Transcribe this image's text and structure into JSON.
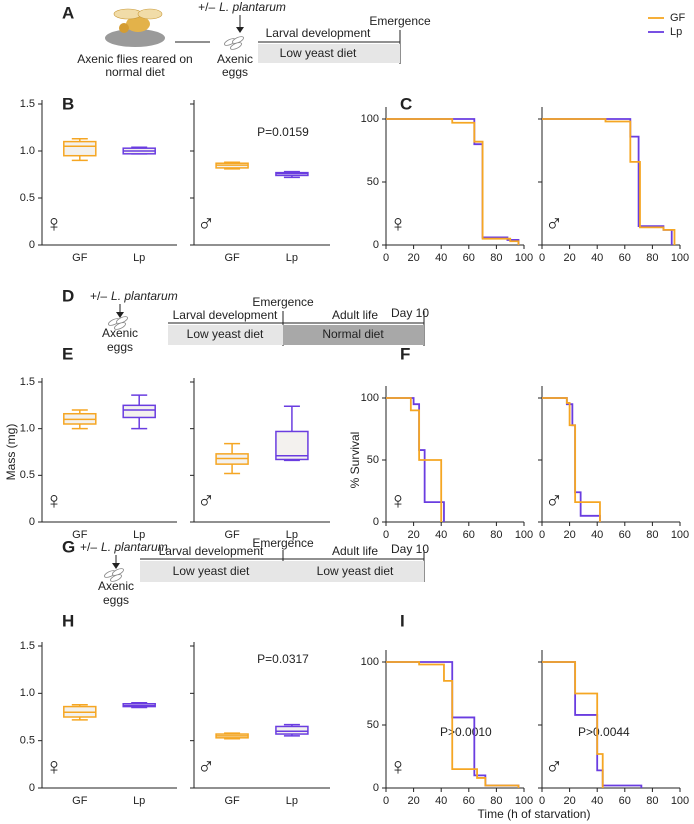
{
  "diagrams": {
    "A": {
      "label": "A",
      "source": [
        "Axenic flies reared on",
        "normal diet"
      ],
      "treatment": [
        "+/–",
        "L. plantarum"
      ],
      "eggs": [
        "Axenic",
        "eggs"
      ],
      "event": "Emergence",
      "stages": [
        "Larval development"
      ],
      "diets": [
        "Low yeast diet"
      ]
    },
    "D": {
      "label": "D",
      "treatment": [
        "+/–",
        "L. plantarum"
      ],
      "eggs": [
        "Axenic",
        "eggs"
      ],
      "event": "Emergence",
      "stages": [
        "Larval development",
        "Adult life"
      ],
      "diets": [
        "Low yeast diet",
        "Normal diet"
      ],
      "end": "Day 10"
    },
    "G": {
      "label": "G",
      "treatment": [
        "+/–",
        "L. plantarum"
      ],
      "eggs": [
        "Axenic",
        "eggs"
      ],
      "event": "Emergence",
      "stages": [
        "Larval development",
        "Adult life"
      ],
      "diets": [
        "Low yeast diet",
        "Low yeast diet"
      ],
      "end": "Day 10"
    }
  },
  "chart_data": [
    {
      "type": "box",
      "label": "B",
      "sex": "♀",
      "categories": [
        "GF",
        "Lp"
      ],
      "colors": [
        "#f5a623",
        "#6a3de0"
      ],
      "boxes": [
        {
          "min": 0.9,
          "q1": 0.95,
          "median": 1.05,
          "q3": 1.1,
          "max": 1.13
        },
        {
          "min": 0.97,
          "q1": 0.97,
          "median": 1.0,
          "q3": 1.03,
          "max": 1.04
        }
      ],
      "ylim": [
        0,
        1.5
      ],
      "yticks": [
        0,
        0.5,
        {
          "value": 1,
          "label": "1.0"
        },
        1.5
      ]
    },
    {
      "type": "box",
      "sex": "♂",
      "annotation": "P=0.0159",
      "categories": [
        "GF",
        "Lp"
      ],
      "colors": [
        "#f5a623",
        "#6a3de0"
      ],
      "boxes": [
        {
          "min": 0.81,
          "q1": 0.82,
          "median": 0.85,
          "q3": 0.87,
          "max": 0.88
        },
        {
          "min": 0.72,
          "q1": 0.74,
          "median": 0.76,
          "q3": 0.77,
          "max": 0.78
        }
      ],
      "ylim": [
        0,
        1.5
      ],
      "yticks": [
        0,
        0.5,
        1,
        1.5
      ],
      "tick_labels": false
    },
    {
      "type": "step",
      "label": "C",
      "sex": "♀",
      "xlim": [
        0,
        100
      ],
      "xticks": [
        0,
        20,
        40,
        60,
        80,
        100
      ],
      "ylim": [
        0,
        100
      ],
      "yticks": [
        0,
        50,
        100
      ],
      "series": [
        {
          "color": "#f5a623",
          "x": [
            0,
            48,
            64,
            70,
            90,
            96
          ],
          "values": [
            100,
            97,
            82,
            5,
            3,
            0
          ]
        },
        {
          "color": "#6a3de0",
          "x": [
            0,
            64,
            70,
            88,
            96
          ],
          "values": [
            100,
            80,
            6,
            4,
            0
          ]
        }
      ]
    },
    {
      "type": "step",
      "sex": "♂",
      "xlim": [
        0,
        100
      ],
      "xticks": [
        0,
        20,
        40,
        60,
        80,
        100
      ],
      "ylim": [
        0,
        100
      ],
      "yticks": [
        0,
        50,
        100
      ],
      "tick_labels": false,
      "legend": "upper right",
      "series": [
        {
          "name": "GF",
          "color": "#f5a623",
          "x": [
            0,
            46,
            64,
            71,
            88,
            96
          ],
          "values": [
            100,
            98,
            66,
            14,
            12,
            0
          ]
        },
        {
          "name": "Lp",
          "color": "#6a3de0",
          "x": [
            0,
            64,
            70,
            88,
            94
          ],
          "values": [
            100,
            86,
            15,
            12,
            0
          ]
        }
      ]
    },
    {
      "type": "box",
      "label": "E",
      "sex": "♀",
      "ylabel": "Mass (mg)",
      "categories": [
        "GF",
        "Lp"
      ],
      "colors": [
        "#f5a623",
        "#6a3de0"
      ],
      "boxes": [
        {
          "min": 1.0,
          "q1": 1.05,
          "median": 1.1,
          "q3": 1.16,
          "max": 1.2
        },
        {
          "min": 1.0,
          "q1": 1.12,
          "median": 1.2,
          "q3": 1.25,
          "max": 1.36
        }
      ],
      "ylim": [
        0,
        1.5
      ],
      "yticks": [
        0,
        0.5,
        {
          "value": 1,
          "label": "1.0"
        },
        1.5
      ]
    },
    {
      "type": "box",
      "sex": "♂",
      "categories": [
        "GF",
        "Lp"
      ],
      "colors": [
        "#f5a623",
        "#6a3de0"
      ],
      "boxes": [
        {
          "min": 0.52,
          "q1": 0.62,
          "median": 0.68,
          "q3": 0.73,
          "max": 0.84
        },
        {
          "min": 0.66,
          "q1": 0.67,
          "median": 0.71,
          "q3": 0.97,
          "max": 1.24
        }
      ],
      "ylim": [
        0,
        1.5
      ],
      "yticks": [
        0,
        0.5,
        1,
        1.5
      ],
      "tick_labels": false
    },
    {
      "type": "step",
      "label": "F",
      "sex": "♀",
      "ylabel": "% Survival",
      "xlim": [
        0,
        100
      ],
      "xticks": [
        0,
        20,
        40,
        60,
        80,
        100
      ],
      "ylim": [
        0,
        100
      ],
      "yticks": [
        0,
        50,
        100
      ],
      "series": [
        {
          "color": "#f5a623",
          "x": [
            0,
            18,
            24,
            40
          ],
          "values": [
            100,
            90,
            50,
            0
          ]
        },
        {
          "color": "#6a3de0",
          "x": [
            0,
            20,
            24,
            28,
            42
          ],
          "values": [
            100,
            95,
            58,
            16,
            0
          ]
        }
      ]
    },
    {
      "type": "step",
      "sex": "♂",
      "xlim": [
        0,
        100
      ],
      "xticks": [
        0,
        20,
        40,
        60,
        80,
        100
      ],
      "ylim": [
        0,
        100
      ],
      "yticks": [
        0,
        50,
        100
      ],
      "tick_labels": false,
      "series": [
        {
          "color": "#f5a623",
          "x": [
            0,
            18,
            20,
            24,
            42
          ],
          "values": [
            100,
            96,
            78,
            16,
            0
          ]
        },
        {
          "color": "#6a3de0",
          "x": [
            0,
            18,
            22,
            24,
            28,
            42
          ],
          "values": [
            100,
            95,
            78,
            24,
            5,
            0
          ]
        }
      ]
    },
    {
      "type": "box",
      "label": "H",
      "sex": "♀",
      "categories": [
        "GF",
        "Lp"
      ],
      "colors": [
        "#f5a623",
        "#6a3de0"
      ],
      "boxes": [
        {
          "min": 0.72,
          "q1": 0.75,
          "median": 0.8,
          "q3": 0.86,
          "max": 0.88
        },
        {
          "min": 0.85,
          "q1": 0.86,
          "median": 0.87,
          "q3": 0.89,
          "max": 0.9
        }
      ],
      "ylim": [
        0,
        1.5
      ],
      "yticks": [
        0,
        0.5,
        {
          "value": 1,
          "label": "1.0"
        },
        1.5
      ]
    },
    {
      "type": "box",
      "sex": "♂",
      "annotation": "P=0.0317",
      "categories": [
        "GF",
        "Lp"
      ],
      "colors": [
        "#f5a623",
        "#6a3de0"
      ],
      "boxes": [
        {
          "min": 0.52,
          "q1": 0.53,
          "median": 0.55,
          "q3": 0.57,
          "max": 0.58
        },
        {
          "min": 0.55,
          "q1": 0.57,
          "median": 0.6,
          "q3": 0.65,
          "max": 0.67
        }
      ],
      "ylim": [
        0,
        1.5
      ],
      "yticks": [
        0,
        0.5,
        1,
        1.5
      ],
      "tick_labels": false
    },
    {
      "type": "step",
      "label": "I",
      "sex": "♀",
      "annotation": "P>0.0010",
      "xlim": [
        0,
        100
      ],
      "xticks": [
        0,
        20,
        40,
        60,
        80,
        100
      ],
      "ylim": [
        0,
        100
      ],
      "yticks": [
        0,
        50,
        100
      ],
      "series": [
        {
          "color": "#f5a623",
          "x": [
            0,
            24,
            42,
            48,
            66,
            72,
            96
          ],
          "values": [
            100,
            98,
            85,
            15,
            8,
            2,
            0
          ]
        },
        {
          "color": "#6a3de0",
          "x": [
            0,
            48,
            64,
            72,
            96
          ],
          "values": [
            100,
            56,
            10,
            2,
            0
          ]
        }
      ]
    },
    {
      "type": "step",
      "sex": "♂",
      "annotation": "P>0.0044",
      "xlabel": "Time (h of starvation)",
      "xlim": [
        0,
        100
      ],
      "xticks": [
        0,
        20,
        40,
        60,
        80,
        100
      ],
      "ylim": [
        0,
        100
      ],
      "yticks": [
        0,
        50,
        100
      ],
      "tick_labels": false,
      "series": [
        {
          "color": "#f5a623",
          "x": [
            0,
            24,
            40,
            44
          ],
          "values": [
            100,
            75,
            27,
            0
          ]
        },
        {
          "color": "#6a3de0",
          "x": [
            0,
            24,
            40,
            44,
            72
          ],
          "values": [
            100,
            58,
            14,
            2,
            0
          ]
        }
      ]
    }
  ]
}
